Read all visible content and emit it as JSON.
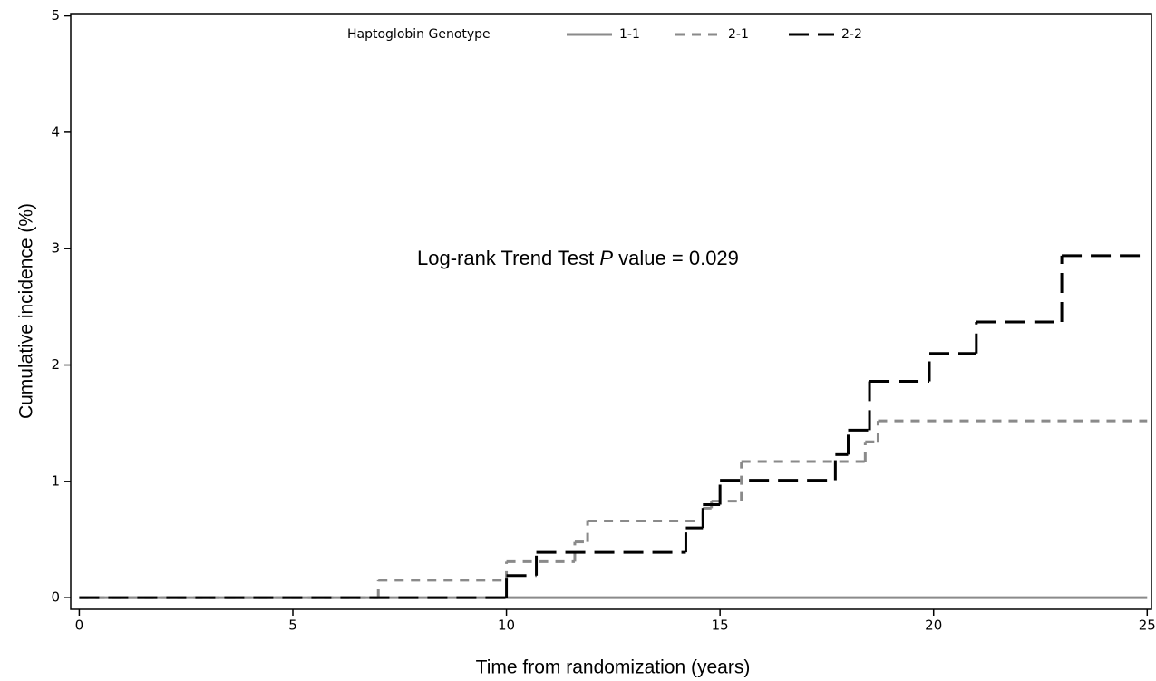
{
  "chart_data": {
    "type": "line",
    "step": true,
    "xlabel": "Time from randomization (years)",
    "ylabel": "Cumulative incidence (%)",
    "legend_title": "Haptoglobin Genotype",
    "legend_position": "top",
    "annotation": [
      "Log-rank Trend Test ",
      "P",
      " value = 0.029"
    ],
    "xlim": [
      -0.2,
      25.1
    ],
    "ylim": [
      -0.1,
      5.02
    ],
    "xticks": [
      0,
      5,
      10,
      15,
      20,
      25
    ],
    "yticks": [
      0,
      1,
      2,
      3,
      4,
      5
    ],
    "series": [
      {
        "name": "1-1",
        "color": "#8a8a8a",
        "dash": "solid",
        "x": [
          0,
          25
        ],
        "values": [
          0,
          0
        ]
      },
      {
        "name": "2-1",
        "color": "#8a8a8a",
        "dash": "dashed",
        "x": [
          0,
          7,
          10,
          11.6,
          11.9,
          14.6,
          14.8,
          15.5,
          18.4,
          18.7,
          25
        ],
        "values": [
          0,
          0.15,
          0.31,
          0.48,
          0.66,
          0.77,
          0.83,
          1.17,
          1.34,
          1.52,
          1.52
        ]
      },
      {
        "name": "2-2",
        "color": "#000000",
        "dash": "long-dashed",
        "x": [
          0,
          10,
          10.7,
          14.2,
          14.6,
          15.0,
          17.7,
          18.0,
          18.5,
          19.9,
          21.0,
          23.0,
          25
        ],
        "values": [
          0,
          0.19,
          0.39,
          0.6,
          0.8,
          1.01,
          1.23,
          1.44,
          1.86,
          2.1,
          2.37,
          2.94,
          2.94
        ]
      }
    ]
  }
}
